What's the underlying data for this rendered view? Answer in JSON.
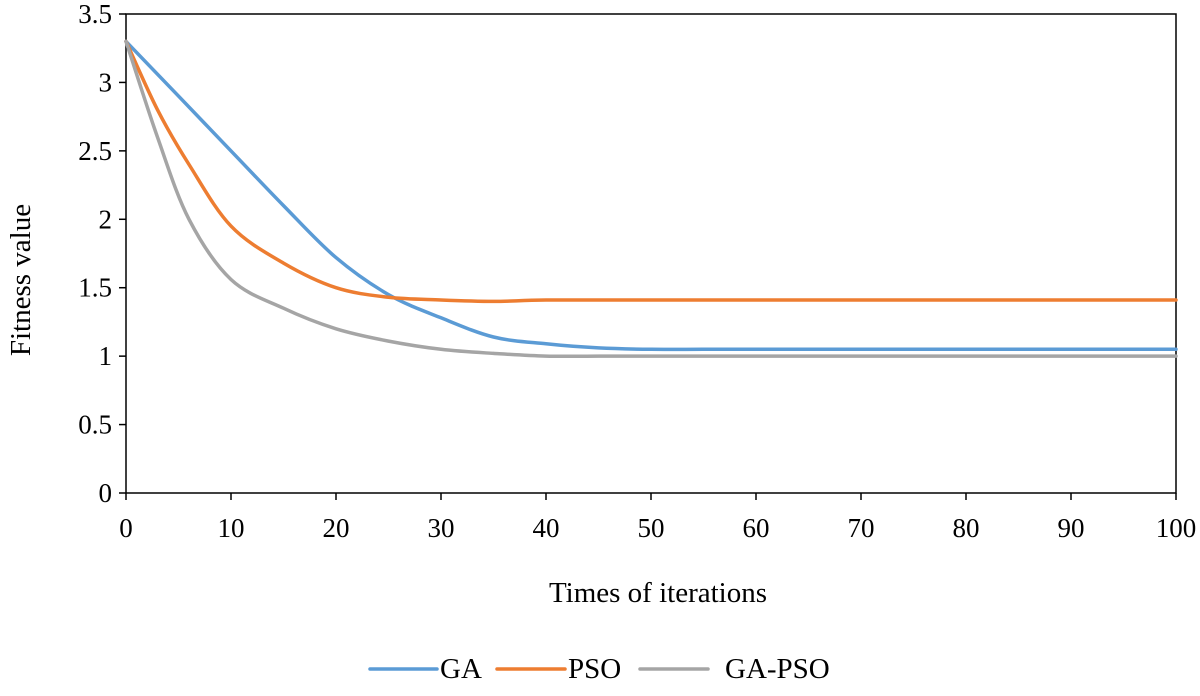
{
  "chart_data": {
    "type": "line",
    "title": "",
    "xlabel": "Times of iterations",
    "ylabel": "Fitness value",
    "xlim": [
      0,
      100
    ],
    "ylim": [
      0,
      3.5
    ],
    "x_ticks": [
      "0",
      "10",
      "20",
      "30",
      "40",
      "50",
      "60",
      "70",
      "80",
      "90",
      "100"
    ],
    "y_ticks": [
      "0",
      "0.5",
      "1",
      "1.5",
      "2",
      "2.5",
      "3",
      "3.5"
    ],
    "grid": false,
    "legend_position": "bottom",
    "series": [
      {
        "name": "GA",
        "color": "#5B9BD5",
        "points": [
          [
            0,
            3.3
          ],
          [
            5,
            2.9
          ],
          [
            10,
            2.5
          ],
          [
            15,
            2.1
          ],
          [
            20,
            1.72
          ],
          [
            25,
            1.45
          ],
          [
            30,
            1.28
          ],
          [
            35,
            1.14
          ],
          [
            40,
            1.09
          ],
          [
            45,
            1.06
          ],
          [
            50,
            1.05
          ],
          [
            55,
            1.05
          ],
          [
            60,
            1.05
          ],
          [
            70,
            1.05
          ],
          [
            80,
            1.05
          ],
          [
            90,
            1.05
          ],
          [
            100,
            1.05
          ]
        ]
      },
      {
        "name": "PSO",
        "color": "#ED7D31",
        "points": [
          [
            0,
            3.3
          ],
          [
            3,
            2.8
          ],
          [
            6,
            2.4
          ],
          [
            10,
            1.95
          ],
          [
            15,
            1.68
          ],
          [
            20,
            1.5
          ],
          [
            25,
            1.43
          ],
          [
            30,
            1.41
          ],
          [
            35,
            1.4
          ],
          [
            40,
            1.41
          ],
          [
            50,
            1.41
          ],
          [
            60,
            1.41
          ],
          [
            70,
            1.41
          ],
          [
            80,
            1.41
          ],
          [
            90,
            1.41
          ],
          [
            100,
            1.41
          ]
        ]
      },
      {
        "name": "GA-PSO",
        "color": "#A5A5A5",
        "points": [
          [
            0,
            3.3
          ],
          [
            3,
            2.6
          ],
          [
            6,
            2.0
          ],
          [
            10,
            1.56
          ],
          [
            15,
            1.35
          ],
          [
            20,
            1.2
          ],
          [
            25,
            1.11
          ],
          [
            30,
            1.05
          ],
          [
            35,
            1.02
          ],
          [
            40,
            1.0
          ],
          [
            45,
            1.0
          ],
          [
            50,
            1.0
          ],
          [
            60,
            1.0
          ],
          [
            70,
            1.0
          ],
          [
            80,
            1.0
          ],
          [
            90,
            1.0
          ],
          [
            100,
            1.0
          ]
        ]
      }
    ]
  }
}
